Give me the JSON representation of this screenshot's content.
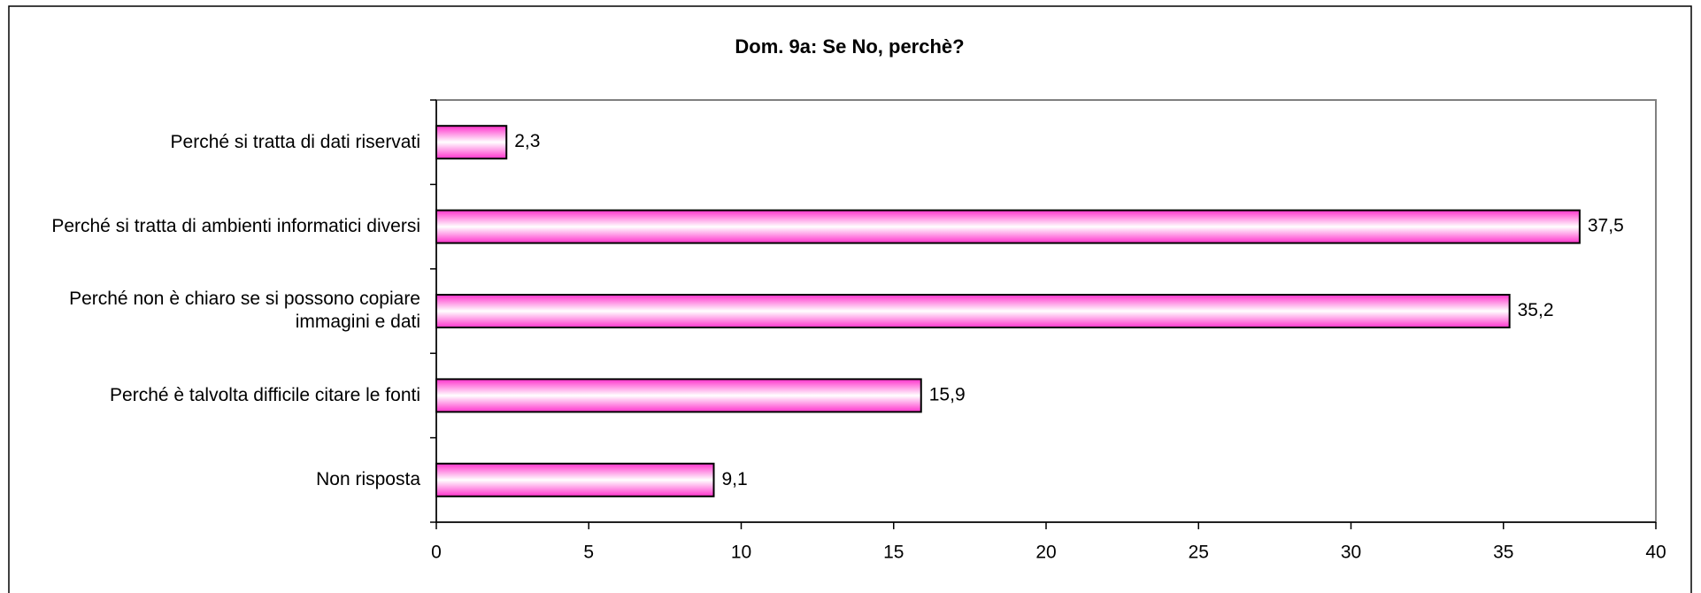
{
  "chart_data": {
    "type": "bar",
    "orientation": "horizontal",
    "title": "Dom. 9a: Se No, perchè?",
    "categories": [
      "Perché si tratta di dati riservati",
      "Perché si tratta di ambienti informatici diversi",
      "Perché non è chiaro se si possono copiare\nimmagini e dati",
      "Perché è talvolta difficile citare le fonti",
      "Non risposta"
    ],
    "values": [
      2.3,
      37.5,
      35.2,
      15.9,
      9.1
    ],
    "value_labels": [
      "2,3",
      "37,5",
      "35,2",
      "15,9",
      "9,1"
    ],
    "color": "#ff33cc",
    "xlim": [
      0,
      40
    ],
    "xticks": [
      0,
      5,
      10,
      15,
      20,
      25,
      30,
      35,
      40
    ],
    "grid": false
  }
}
